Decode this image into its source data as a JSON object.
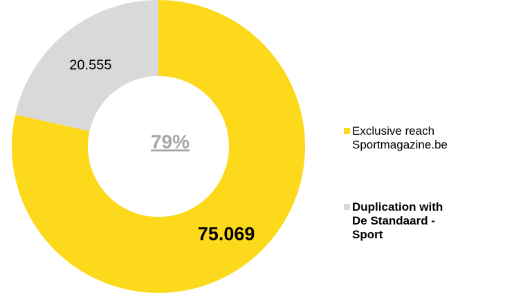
{
  "chart_data": {
    "type": "donut",
    "annotation": "79%",
    "series": [
      {
        "name": "Exclusive reach Sportmagazine.be",
        "color": "#FDD91C",
        "values": [
          75069
        ],
        "value_labels": [
          "75.069"
        ]
      },
      {
        "name": "Duplication with De Standaard - Sport",
        "color": "#D9D9D9",
        "values": [
          20555
        ],
        "value_labels": [
          "20.555"
        ]
      }
    ]
  }
}
